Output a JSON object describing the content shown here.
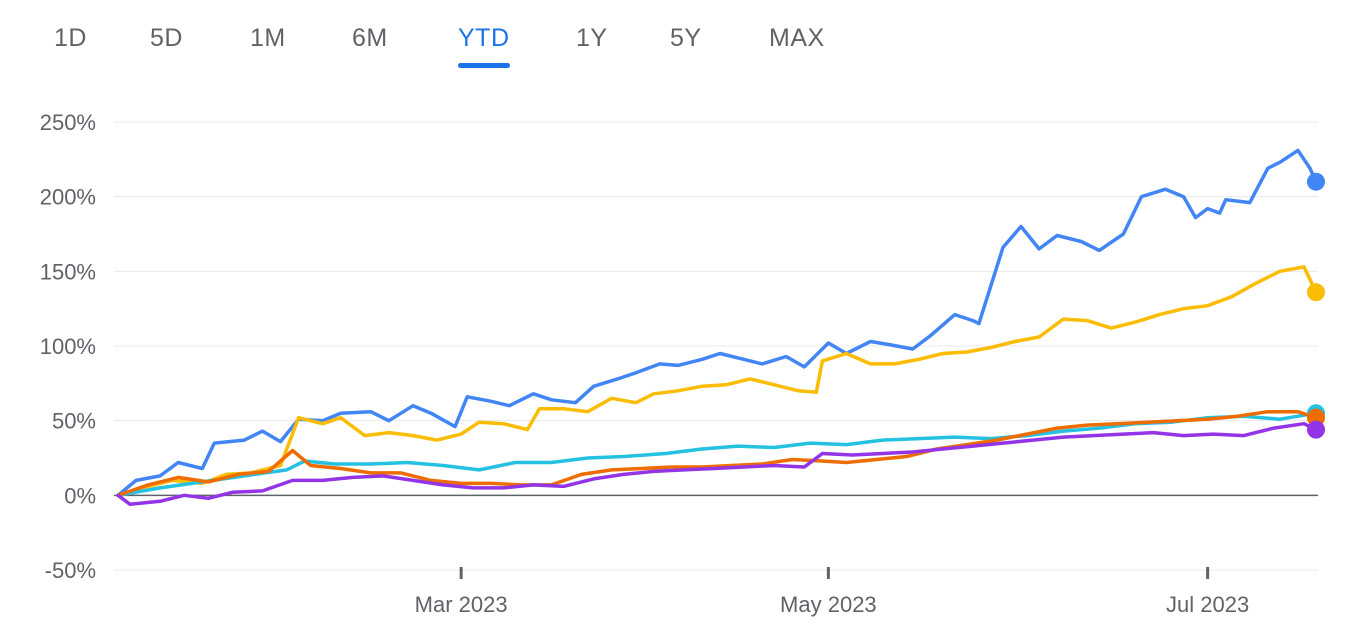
{
  "range_tabs": [
    {
      "label": "1D"
    },
    {
      "label": "5D"
    },
    {
      "label": "1M"
    },
    {
      "label": "6M"
    },
    {
      "label": "YTD"
    },
    {
      "label": "1Y"
    },
    {
      "label": "5Y"
    },
    {
      "label": "MAX"
    }
  ],
  "active_tab": "YTD",
  "chart_data": {
    "type": "line",
    "y_ticks": [
      "250%",
      "200%",
      "150%",
      "100%",
      "50%",
      "0%",
      "-50%"
    ],
    "y_tick_values": [
      250,
      200,
      150,
      100,
      50,
      0,
      -50
    ],
    "ylim": [
      -50,
      250
    ],
    "xlim": [
      "2023-01-03",
      "2023-07-21"
    ],
    "x_ticks": [
      {
        "date": "2023-03-01",
        "label": "Mar 2023"
      },
      {
        "date": "2023-05-01",
        "label": "May 2023"
      },
      {
        "date": "2023-07-03",
        "label": "Jul 2023"
      }
    ],
    "grid": true,
    "series": [
      {
        "color": "#4285f4",
        "points": [
          [
            "2023-01-03",
            0
          ],
          [
            "2023-01-06",
            10
          ],
          [
            "2023-01-10",
            13
          ],
          [
            "2023-01-13",
            22
          ],
          [
            "2023-01-17",
            18
          ],
          [
            "2023-01-19",
            35
          ],
          [
            "2023-01-24",
            37
          ],
          [
            "2023-01-27",
            43
          ],
          [
            "2023-01-30",
            36
          ],
          [
            "2023-02-02",
            51
          ],
          [
            "2023-02-06",
            50
          ],
          [
            "2023-02-09",
            55
          ],
          [
            "2023-02-14",
            56
          ],
          [
            "2023-02-17",
            50
          ],
          [
            "2023-02-21",
            60
          ],
          [
            "2023-02-24",
            55
          ],
          [
            "2023-02-28",
            46
          ],
          [
            "2023-03-02",
            66
          ],
          [
            "2023-03-06",
            63
          ],
          [
            "2023-03-09",
            60
          ],
          [
            "2023-03-13",
            68
          ],
          [
            "2023-03-16",
            64
          ],
          [
            "2023-03-20",
            62
          ],
          [
            "2023-03-23",
            73
          ],
          [
            "2023-03-27",
            78
          ],
          [
            "2023-03-30",
            82
          ],
          [
            "2023-04-03",
            88
          ],
          [
            "2023-04-06",
            87
          ],
          [
            "2023-04-10",
            91
          ],
          [
            "2023-04-13",
            95
          ],
          [
            "2023-04-17",
            91
          ],
          [
            "2023-04-20",
            88
          ],
          [
            "2023-04-24",
            93
          ],
          [
            "2023-04-27",
            86
          ],
          [
            "2023-05-01",
            102
          ],
          [
            "2023-05-04",
            95
          ],
          [
            "2023-05-08",
            103
          ],
          [
            "2023-05-11",
            101
          ],
          [
            "2023-05-15",
            98
          ],
          [
            "2023-05-18",
            107
          ],
          [
            "2023-05-22",
            121
          ],
          [
            "2023-05-25",
            117
          ],
          [
            "2023-05-26",
            115
          ],
          [
            "2023-05-30",
            166
          ],
          [
            "2023-06-02",
            180
          ],
          [
            "2023-06-05",
            165
          ],
          [
            "2023-06-08",
            174
          ],
          [
            "2023-06-12",
            170
          ],
          [
            "2023-06-15",
            164
          ],
          [
            "2023-06-19",
            175
          ],
          [
            "2023-06-22",
            200
          ],
          [
            "2023-06-26",
            205
          ],
          [
            "2023-06-29",
            200
          ],
          [
            "2023-07-01",
            186
          ],
          [
            "2023-07-03",
            192
          ],
          [
            "2023-07-05",
            189
          ],
          [
            "2023-07-06",
            198
          ],
          [
            "2023-07-10",
            196
          ],
          [
            "2023-07-13",
            219
          ],
          [
            "2023-07-15",
            223
          ],
          [
            "2023-07-18",
            231
          ],
          [
            "2023-07-20",
            219
          ],
          [
            "2023-07-21",
            210
          ]
        ]
      },
      {
        "color": "#fbbc04",
        "points": [
          [
            "2023-01-03",
            0
          ],
          [
            "2023-01-08",
            6
          ],
          [
            "2023-01-12",
            10
          ],
          [
            "2023-01-17",
            8
          ],
          [
            "2023-01-21",
            14
          ],
          [
            "2023-01-25",
            15
          ],
          [
            "2023-01-30",
            20
          ],
          [
            "2023-02-02",
            52
          ],
          [
            "2023-02-06",
            48
          ],
          [
            "2023-02-09",
            52
          ],
          [
            "2023-02-13",
            40
          ],
          [
            "2023-02-17",
            42
          ],
          [
            "2023-02-21",
            40
          ],
          [
            "2023-02-25",
            37
          ],
          [
            "2023-03-01",
            41
          ],
          [
            "2023-03-04",
            49
          ],
          [
            "2023-03-08",
            48
          ],
          [
            "2023-03-12",
            44
          ],
          [
            "2023-03-14",
            58
          ],
          [
            "2023-03-18",
            58
          ],
          [
            "2023-03-22",
            56
          ],
          [
            "2023-03-26",
            65
          ],
          [
            "2023-03-30",
            62
          ],
          [
            "2023-04-02",
            68
          ],
          [
            "2023-04-06",
            70
          ],
          [
            "2023-04-10",
            73
          ],
          [
            "2023-04-14",
            74
          ],
          [
            "2023-04-18",
            78
          ],
          [
            "2023-04-22",
            74
          ],
          [
            "2023-04-26",
            70
          ],
          [
            "2023-04-29",
            69
          ],
          [
            "2023-04-30",
            90
          ],
          [
            "2023-05-04",
            95
          ],
          [
            "2023-05-08",
            88
          ],
          [
            "2023-05-12",
            88
          ],
          [
            "2023-05-16",
            91
          ],
          [
            "2023-05-20",
            95
          ],
          [
            "2023-05-24",
            96
          ],
          [
            "2023-05-28",
            99
          ],
          [
            "2023-06-01",
            103
          ],
          [
            "2023-06-05",
            106
          ],
          [
            "2023-06-09",
            118
          ],
          [
            "2023-06-13",
            117
          ],
          [
            "2023-06-17",
            112
          ],
          [
            "2023-06-21",
            116
          ],
          [
            "2023-06-25",
            121
          ],
          [
            "2023-06-29",
            125
          ],
          [
            "2023-07-03",
            127
          ],
          [
            "2023-07-07",
            133
          ],
          [
            "2023-07-11",
            142
          ],
          [
            "2023-07-15",
            150
          ],
          [
            "2023-07-19",
            153
          ],
          [
            "2023-07-21",
            136
          ]
        ]
      },
      {
        "color": "#24c1e0",
        "points": [
          [
            "2023-01-03",
            0
          ],
          [
            "2023-01-10",
            5
          ],
          [
            "2023-01-17",
            9
          ],
          [
            "2023-01-24",
            13
          ],
          [
            "2023-01-31",
            17
          ],
          [
            "2023-02-03",
            23
          ],
          [
            "2023-02-08",
            21
          ],
          [
            "2023-02-14",
            21
          ],
          [
            "2023-02-20",
            22
          ],
          [
            "2023-02-26",
            20
          ],
          [
            "2023-03-04",
            17
          ],
          [
            "2023-03-10",
            22
          ],
          [
            "2023-03-16",
            22
          ],
          [
            "2023-03-22",
            25
          ],
          [
            "2023-03-28",
            26
          ],
          [
            "2023-04-04",
            28
          ],
          [
            "2023-04-10",
            31
          ],
          [
            "2023-04-16",
            33
          ],
          [
            "2023-04-22",
            32
          ],
          [
            "2023-04-28",
            35
          ],
          [
            "2023-05-04",
            34
          ],
          [
            "2023-05-10",
            37
          ],
          [
            "2023-05-16",
            38
          ],
          [
            "2023-05-22",
            39
          ],
          [
            "2023-05-28",
            38
          ],
          [
            "2023-06-03",
            40
          ],
          [
            "2023-06-09",
            43
          ],
          [
            "2023-06-15",
            45
          ],
          [
            "2023-06-21",
            48
          ],
          [
            "2023-06-27",
            49
          ],
          [
            "2023-07-03",
            52
          ],
          [
            "2023-07-09",
            53
          ],
          [
            "2023-07-15",
            51
          ],
          [
            "2023-07-21",
            55
          ]
        ]
      },
      {
        "color": "#ef6c00",
        "points": [
          [
            "2023-01-03",
            0
          ],
          [
            "2023-01-08",
            7
          ],
          [
            "2023-01-13",
            12
          ],
          [
            "2023-01-18",
            9
          ],
          [
            "2023-01-23",
            14
          ],
          [
            "2023-01-28",
            16
          ],
          [
            "2023-02-01",
            30
          ],
          [
            "2023-02-04",
            20
          ],
          [
            "2023-02-09",
            18
          ],
          [
            "2023-02-14",
            15
          ],
          [
            "2023-02-19",
            15
          ],
          [
            "2023-02-24",
            10
          ],
          [
            "2023-03-01",
            8
          ],
          [
            "2023-03-06",
            8
          ],
          [
            "2023-03-11",
            7
          ],
          [
            "2023-03-16",
            7
          ],
          [
            "2023-03-21",
            14
          ],
          [
            "2023-03-26",
            17
          ],
          [
            "2023-03-31",
            18
          ],
          [
            "2023-04-05",
            19
          ],
          [
            "2023-04-10",
            19
          ],
          [
            "2023-04-15",
            20
          ],
          [
            "2023-04-20",
            21
          ],
          [
            "2023-04-25",
            24
          ],
          [
            "2023-04-30",
            23
          ],
          [
            "2023-05-04",
            22
          ],
          [
            "2023-05-09",
            24
          ],
          [
            "2023-05-14",
            26
          ],
          [
            "2023-05-19",
            31
          ],
          [
            "2023-05-24",
            34
          ],
          [
            "2023-05-29",
            37
          ],
          [
            "2023-06-03",
            41
          ],
          [
            "2023-06-08",
            45
          ],
          [
            "2023-06-13",
            47
          ],
          [
            "2023-06-18",
            48
          ],
          [
            "2023-06-23",
            49
          ],
          [
            "2023-06-28",
            50
          ],
          [
            "2023-07-03",
            51
          ],
          [
            "2023-07-08",
            53
          ],
          [
            "2023-07-13",
            56
          ],
          [
            "2023-07-18",
            56
          ],
          [
            "2023-07-21",
            52
          ]
        ]
      },
      {
        "color": "#9334e6",
        "points": [
          [
            "2023-01-03",
            0
          ],
          [
            "2023-01-05",
            -6
          ],
          [
            "2023-01-10",
            -4
          ],
          [
            "2023-01-14",
            0
          ],
          [
            "2023-01-18",
            -2
          ],
          [
            "2023-01-22",
            2
          ],
          [
            "2023-01-27",
            3
          ],
          [
            "2023-02-01",
            10
          ],
          [
            "2023-02-06",
            10
          ],
          [
            "2023-02-11",
            12
          ],
          [
            "2023-02-16",
            13
          ],
          [
            "2023-02-21",
            10
          ],
          [
            "2023-02-26",
            7
          ],
          [
            "2023-03-03",
            5
          ],
          [
            "2023-03-08",
            5
          ],
          [
            "2023-03-13",
            7
          ],
          [
            "2023-03-18",
            6
          ],
          [
            "2023-03-23",
            11
          ],
          [
            "2023-03-28",
            14
          ],
          [
            "2023-04-02",
            16
          ],
          [
            "2023-04-07",
            17
          ],
          [
            "2023-04-12",
            18
          ],
          [
            "2023-04-17",
            19
          ],
          [
            "2023-04-22",
            20
          ],
          [
            "2023-04-27",
            19
          ],
          [
            "2023-04-30",
            28
          ],
          [
            "2023-05-05",
            27
          ],
          [
            "2023-05-10",
            28
          ],
          [
            "2023-05-15",
            29
          ],
          [
            "2023-05-20",
            31
          ],
          [
            "2023-05-25",
            33
          ],
          [
            "2023-05-30",
            35
          ],
          [
            "2023-06-04",
            37
          ],
          [
            "2023-06-09",
            39
          ],
          [
            "2023-06-14",
            40
          ],
          [
            "2023-06-19",
            41
          ],
          [
            "2023-06-24",
            42
          ],
          [
            "2023-06-29",
            40
          ],
          [
            "2023-07-04",
            41
          ],
          [
            "2023-07-09",
            40
          ],
          [
            "2023-07-14",
            45
          ],
          [
            "2023-07-19",
            48
          ],
          [
            "2023-07-21",
            44
          ]
        ]
      }
    ]
  }
}
